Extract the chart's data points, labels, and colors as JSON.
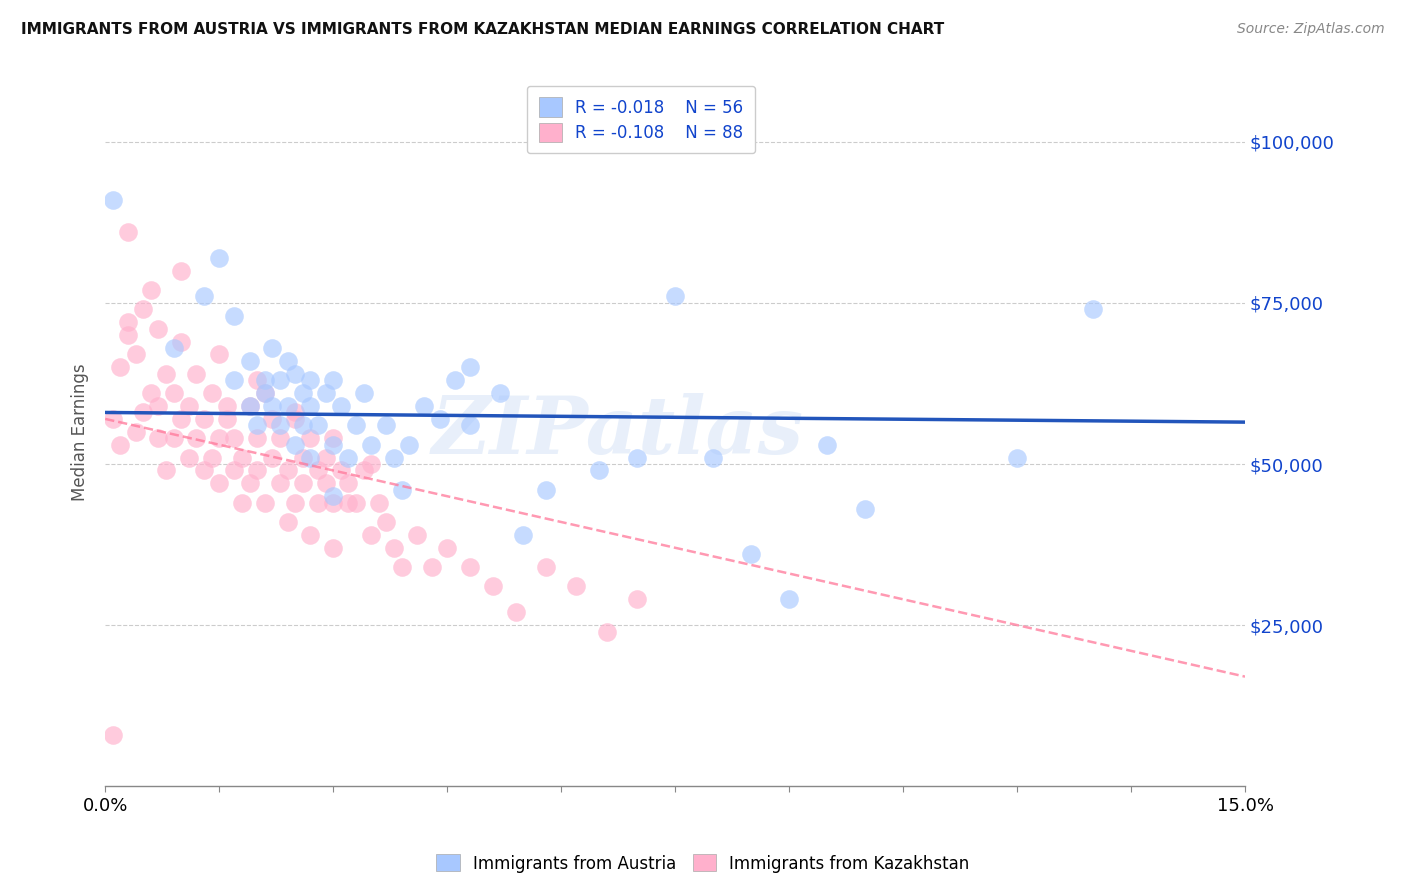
{
  "title": "IMMIGRANTS FROM AUSTRIA VS IMMIGRANTS FROM KAZAKHSTAN MEDIAN EARNINGS CORRELATION CHART",
  "source": "Source: ZipAtlas.com",
  "ylabel": "Median Earnings",
  "watermark": "ZIPatlas",
  "austria_R": -0.018,
  "austria_N": 56,
  "kazakhstan_R": -0.108,
  "kazakhstan_N": 88,
  "austria_color": "#a8c8ff",
  "kazakhstan_color": "#ffb0cc",
  "austria_line_color": "#2255bb",
  "kazakhstan_line_color": "#ff7799",
  "r_color": "#1144cc",
  "legend_label_austria": "Immigrants from Austria",
  "legend_label_kazakhstan": "Immigrants from Kazakhstan",
  "xmin": 0.0,
  "xmax": 0.15,
  "ymin": 0,
  "ymax": 110000,
  "yticks": [
    25000,
    50000,
    75000,
    100000
  ],
  "austria_trend_y0": 58000,
  "austria_trend_y1": 56500,
  "kazakhstan_trend_y0": 57000,
  "kazakhstan_trend_y1": 17000,
  "austria_x": [
    0.001,
    0.009,
    0.013,
    0.015,
    0.017,
    0.017,
    0.019,
    0.019,
    0.02,
    0.021,
    0.021,
    0.022,
    0.022,
    0.023,
    0.023,
    0.024,
    0.024,
    0.025,
    0.025,
    0.026,
    0.026,
    0.027,
    0.027,
    0.027,
    0.028,
    0.029,
    0.03,
    0.03,
    0.031,
    0.032,
    0.033,
    0.034,
    0.035,
    0.037,
    0.038,
    0.039,
    0.04,
    0.042,
    0.044,
    0.046,
    0.048,
    0.052,
    0.055,
    0.058,
    0.065,
    0.07,
    0.075,
    0.08,
    0.085,
    0.09,
    0.095,
    0.1,
    0.12,
    0.13,
    0.048,
    0.03
  ],
  "austria_y": [
    91000,
    68000,
    76000,
    82000,
    73000,
    63000,
    66000,
    59000,
    56000,
    63000,
    61000,
    59000,
    68000,
    63000,
    56000,
    66000,
    59000,
    64000,
    53000,
    61000,
    56000,
    63000,
    59000,
    51000,
    56000,
    61000,
    63000,
    53000,
    59000,
    51000,
    56000,
    61000,
    53000,
    56000,
    51000,
    46000,
    53000,
    59000,
    57000,
    63000,
    56000,
    61000,
    39000,
    46000,
    49000,
    51000,
    76000,
    51000,
    36000,
    29000,
    53000,
    43000,
    51000,
    74000,
    65000,
    45000
  ],
  "kazakhstan_x": [
    0.001,
    0.001,
    0.002,
    0.002,
    0.003,
    0.003,
    0.004,
    0.004,
    0.005,
    0.005,
    0.006,
    0.006,
    0.007,
    0.007,
    0.008,
    0.008,
    0.009,
    0.009,
    0.01,
    0.01,
    0.011,
    0.011,
    0.012,
    0.012,
    0.013,
    0.013,
    0.014,
    0.014,
    0.015,
    0.015,
    0.016,
    0.016,
    0.017,
    0.017,
    0.018,
    0.018,
    0.019,
    0.019,
    0.02,
    0.02,
    0.021,
    0.021,
    0.022,
    0.022,
    0.023,
    0.023,
    0.024,
    0.024,
    0.025,
    0.025,
    0.026,
    0.026,
    0.027,
    0.027,
    0.028,
    0.028,
    0.029,
    0.029,
    0.03,
    0.03,
    0.031,
    0.032,
    0.032,
    0.033,
    0.034,
    0.035,
    0.036,
    0.037,
    0.038,
    0.039,
    0.041,
    0.043,
    0.045,
    0.048,
    0.051,
    0.054,
    0.058,
    0.062,
    0.066,
    0.07,
    0.003,
    0.007,
    0.01,
    0.015,
    0.02,
    0.025,
    0.03,
    0.035
  ],
  "kazakhstan_y": [
    8000,
    57000,
    53000,
    65000,
    70000,
    72000,
    55000,
    67000,
    58000,
    74000,
    61000,
    77000,
    54000,
    59000,
    49000,
    64000,
    54000,
    61000,
    69000,
    57000,
    51000,
    59000,
    54000,
    64000,
    49000,
    57000,
    51000,
    61000,
    54000,
    47000,
    59000,
    57000,
    49000,
    54000,
    44000,
    51000,
    59000,
    47000,
    54000,
    49000,
    61000,
    44000,
    57000,
    51000,
    47000,
    54000,
    41000,
    49000,
    57000,
    44000,
    51000,
    47000,
    39000,
    54000,
    44000,
    49000,
    51000,
    47000,
    37000,
    44000,
    49000,
    44000,
    47000,
    44000,
    49000,
    39000,
    44000,
    41000,
    37000,
    34000,
    39000,
    34000,
    37000,
    34000,
    31000,
    27000,
    34000,
    31000,
    24000,
    29000,
    86000,
    71000,
    80000,
    67000,
    63000,
    58000,
    54000,
    50000
  ]
}
